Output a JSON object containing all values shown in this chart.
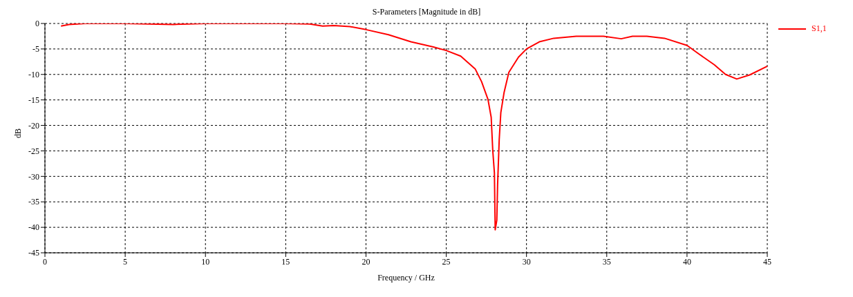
{
  "chart_data": {
    "type": "line",
    "title": "S-Parameters [Magnitude in dB]",
    "xlabel": "Frequency / GHz",
    "ylabel": "dB",
    "series": [
      {
        "name": "S1,1",
        "color": "#ff0000",
        "x": [
          1,
          1.5,
          2.5,
          5,
          8,
          10,
          13,
          15,
          16.5,
          17.3,
          18,
          19,
          20,
          21.4,
          22.8,
          24.2,
          25,
          25.9,
          26.8,
          27.2,
          27.6,
          27.8,
          27.9,
          28,
          28.05,
          28.15,
          28.2,
          28.3,
          28.4,
          28.6,
          28.9,
          29.5,
          30,
          30.8,
          31.7,
          33.1,
          34.8,
          35.9,
          36.6,
          37.5,
          38.6,
          40,
          40.7,
          41.7,
          42.4,
          43.1,
          43.9,
          45
        ],
        "values": [
          -0.5,
          -0.2,
          0,
          0,
          -0.2,
          0,
          0,
          0,
          -0.1,
          -0.5,
          -0.4,
          -0.6,
          -1.2,
          -2.2,
          -3.6,
          -4.6,
          -5.3,
          -6.4,
          -8.9,
          -11.4,
          -14.9,
          -18.4,
          -25,
          -29.3,
          -40.5,
          -38.6,
          -31.6,
          -22.8,
          -17.5,
          -13.6,
          -9.6,
          -6.6,
          -5,
          -3.6,
          -2.9,
          -2.5,
          -2.5,
          -3,
          -2.5,
          -2.5,
          -2.9,
          -4.3,
          -5.9,
          -8.1,
          -10,
          -10.9,
          -10.1,
          -8.4
        ]
      }
    ],
    "xlim": [
      0,
      45
    ],
    "xticks": [
      0,
      5,
      10,
      15,
      20,
      25,
      30,
      35,
      40,
      45
    ],
    "ylim": [
      -45,
      0
    ],
    "yticks": [
      -45,
      -40,
      -35,
      -30,
      -25,
      -20,
      -15,
      -10,
      -5,
      0
    ],
    "grid": true,
    "legend": "top right",
    "marker": "none",
    "line_style": "solid"
  }
}
